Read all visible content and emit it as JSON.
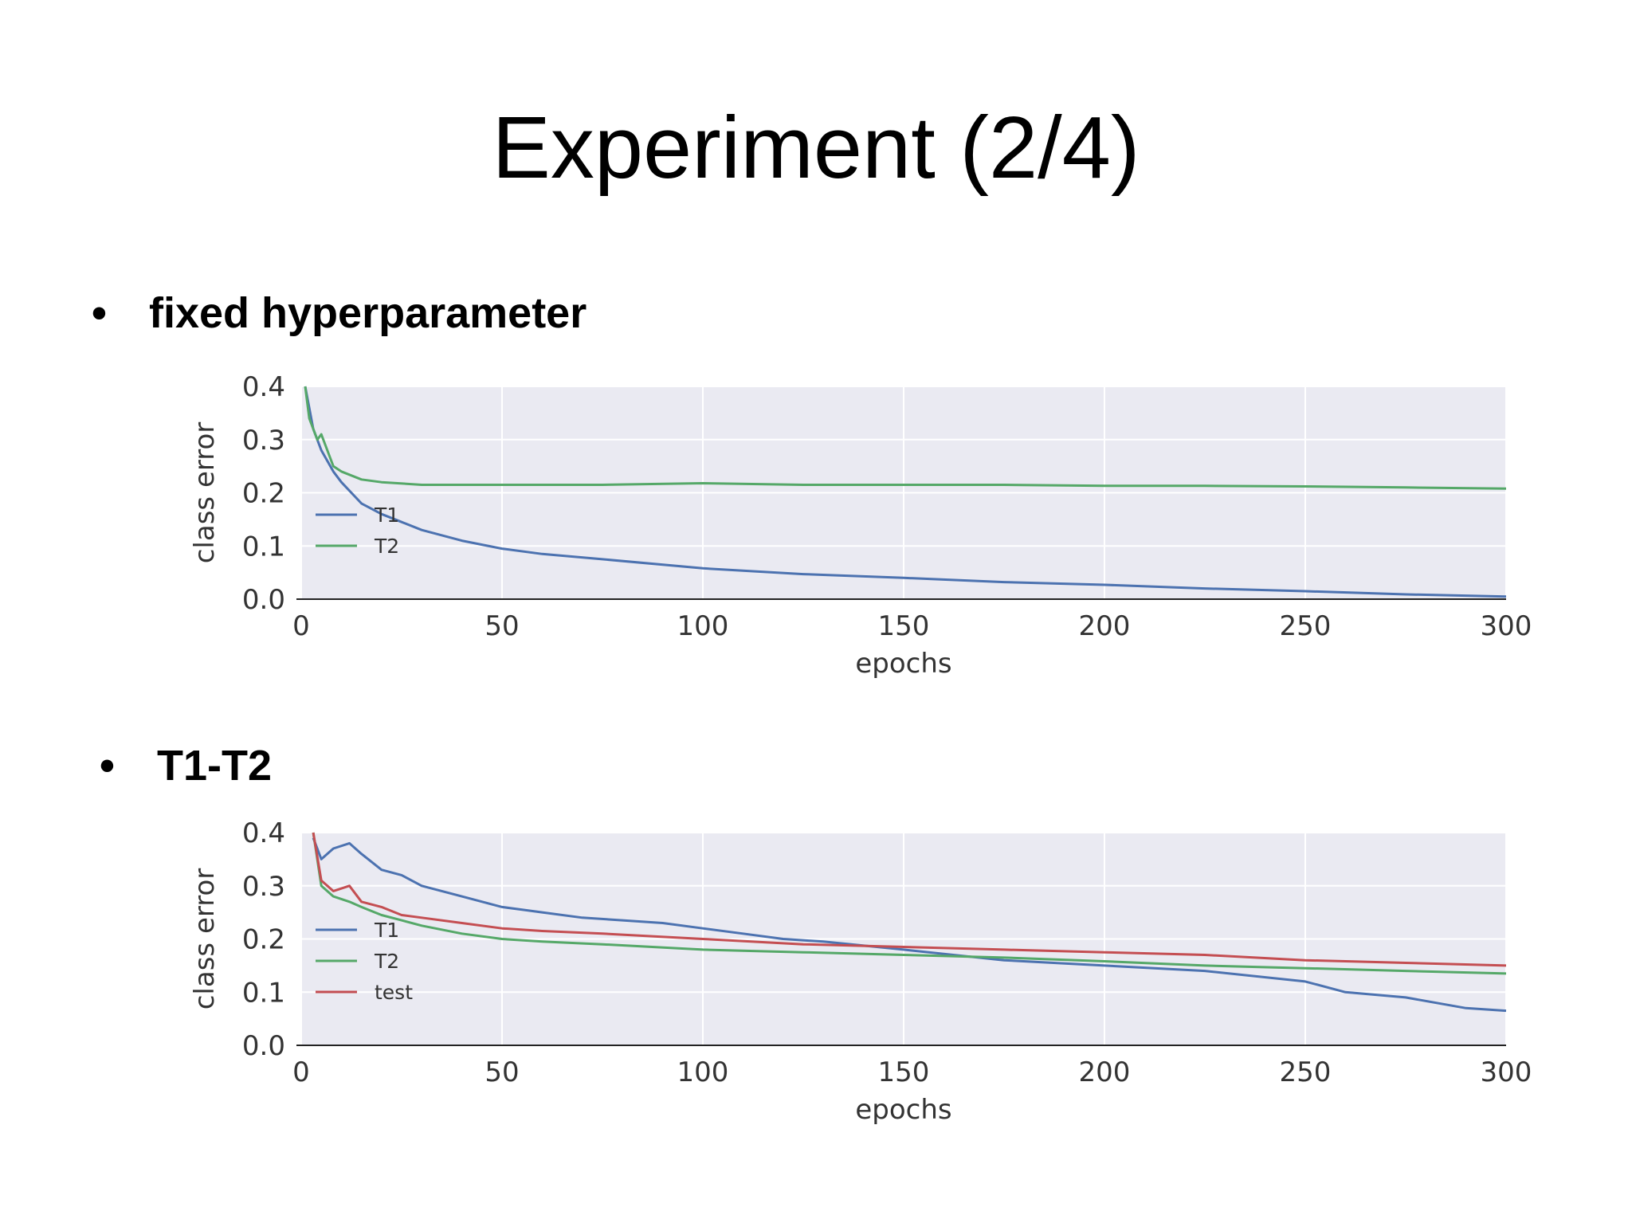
{
  "slide": {
    "title": "Experiment (2/4)",
    "bullets": [
      {
        "marker": "•",
        "text": "fixed hyperparameter"
      },
      {
        "marker": "•",
        "text": "T1-T2"
      }
    ]
  },
  "colors": {
    "T1": "#4c72b0",
    "T2": "#55a868",
    "test": "#c44e52",
    "plot_background": "#eaeaf2",
    "grid": "#ffffff"
  },
  "chart_data": [
    {
      "type": "line",
      "xlabel": "epochs",
      "ylabel": "class error",
      "xlim": [
        0,
        300
      ],
      "ylim": [
        0,
        0.4
      ],
      "xticks": [
        0,
        50,
        100,
        150,
        200,
        250,
        300
      ],
      "yticks": [
        "0.0",
        "0.1",
        "0.2",
        "0.3",
        "0.4"
      ],
      "grid": true,
      "legend_position": "lower-left",
      "series": [
        {
          "name": "T1",
          "color": "#4c72b0",
          "x": [
            1,
            3,
            5,
            8,
            10,
            15,
            20,
            25,
            30,
            40,
            50,
            60,
            75,
            100,
            125,
            150,
            175,
            200,
            225,
            250,
            275,
            300
          ],
          "y": [
            0.4,
            0.32,
            0.28,
            0.24,
            0.22,
            0.18,
            0.16,
            0.145,
            0.13,
            0.11,
            0.095,
            0.085,
            0.075,
            0.058,
            0.047,
            0.04,
            0.032,
            0.027,
            0.02,
            0.015,
            0.009,
            0.005
          ]
        },
        {
          "name": "T2",
          "color": "#55a868",
          "x": [
            1,
            2,
            4,
            5,
            8,
            10,
            15,
            20,
            30,
            40,
            50,
            75,
            100,
            125,
            150,
            175,
            200,
            225,
            250,
            275,
            300
          ],
          "y": [
            0.4,
            0.34,
            0.3,
            0.31,
            0.25,
            0.24,
            0.225,
            0.22,
            0.215,
            0.215,
            0.215,
            0.215,
            0.218,
            0.215,
            0.215,
            0.215,
            0.213,
            0.213,
            0.212,
            0.21,
            0.208
          ]
        }
      ]
    },
    {
      "type": "line",
      "xlabel": "epochs",
      "ylabel": "class error",
      "xlim": [
        0,
        300
      ],
      "ylim": [
        0,
        0.4
      ],
      "xticks": [
        0,
        50,
        100,
        150,
        200,
        250,
        300
      ],
      "yticks": [
        "0.0",
        "0.1",
        "0.2",
        "0.3",
        "0.4"
      ],
      "grid": true,
      "legend_position": "lower-left",
      "series": [
        {
          "name": "T1",
          "color": "#4c72b0",
          "x": [
            3,
            5,
            8,
            12,
            15,
            20,
            25,
            30,
            40,
            50,
            60,
            70,
            80,
            90,
            100,
            110,
            120,
            130,
            150,
            175,
            200,
            225,
            250,
            260,
            275,
            290,
            300
          ],
          "y": [
            0.39,
            0.35,
            0.37,
            0.38,
            0.36,
            0.33,
            0.32,
            0.3,
            0.28,
            0.26,
            0.25,
            0.24,
            0.235,
            0.23,
            0.22,
            0.21,
            0.2,
            0.195,
            0.18,
            0.16,
            0.15,
            0.14,
            0.12,
            0.1,
            0.09,
            0.07,
            0.065
          ]
        },
        {
          "name": "T2",
          "color": "#55a868",
          "x": [
            3,
            5,
            8,
            12,
            15,
            20,
            25,
            30,
            40,
            50,
            60,
            75,
            100,
            125,
            150,
            175,
            200,
            225,
            250,
            275,
            300
          ],
          "y": [
            0.4,
            0.3,
            0.28,
            0.27,
            0.26,
            0.245,
            0.235,
            0.225,
            0.21,
            0.2,
            0.195,
            0.19,
            0.18,
            0.175,
            0.17,
            0.165,
            0.158,
            0.15,
            0.145,
            0.14,
            0.135
          ]
        },
        {
          "name": "test",
          "color": "#c44e52",
          "x": [
            3,
            5,
            8,
            12,
            15,
            20,
            25,
            30,
            40,
            50,
            60,
            75,
            100,
            125,
            150,
            175,
            200,
            225,
            250,
            275,
            300
          ],
          "y": [
            0.4,
            0.31,
            0.29,
            0.3,
            0.27,
            0.26,
            0.245,
            0.24,
            0.23,
            0.22,
            0.215,
            0.21,
            0.2,
            0.19,
            0.185,
            0.18,
            0.175,
            0.17,
            0.16,
            0.155,
            0.15
          ]
        }
      ]
    }
  ]
}
